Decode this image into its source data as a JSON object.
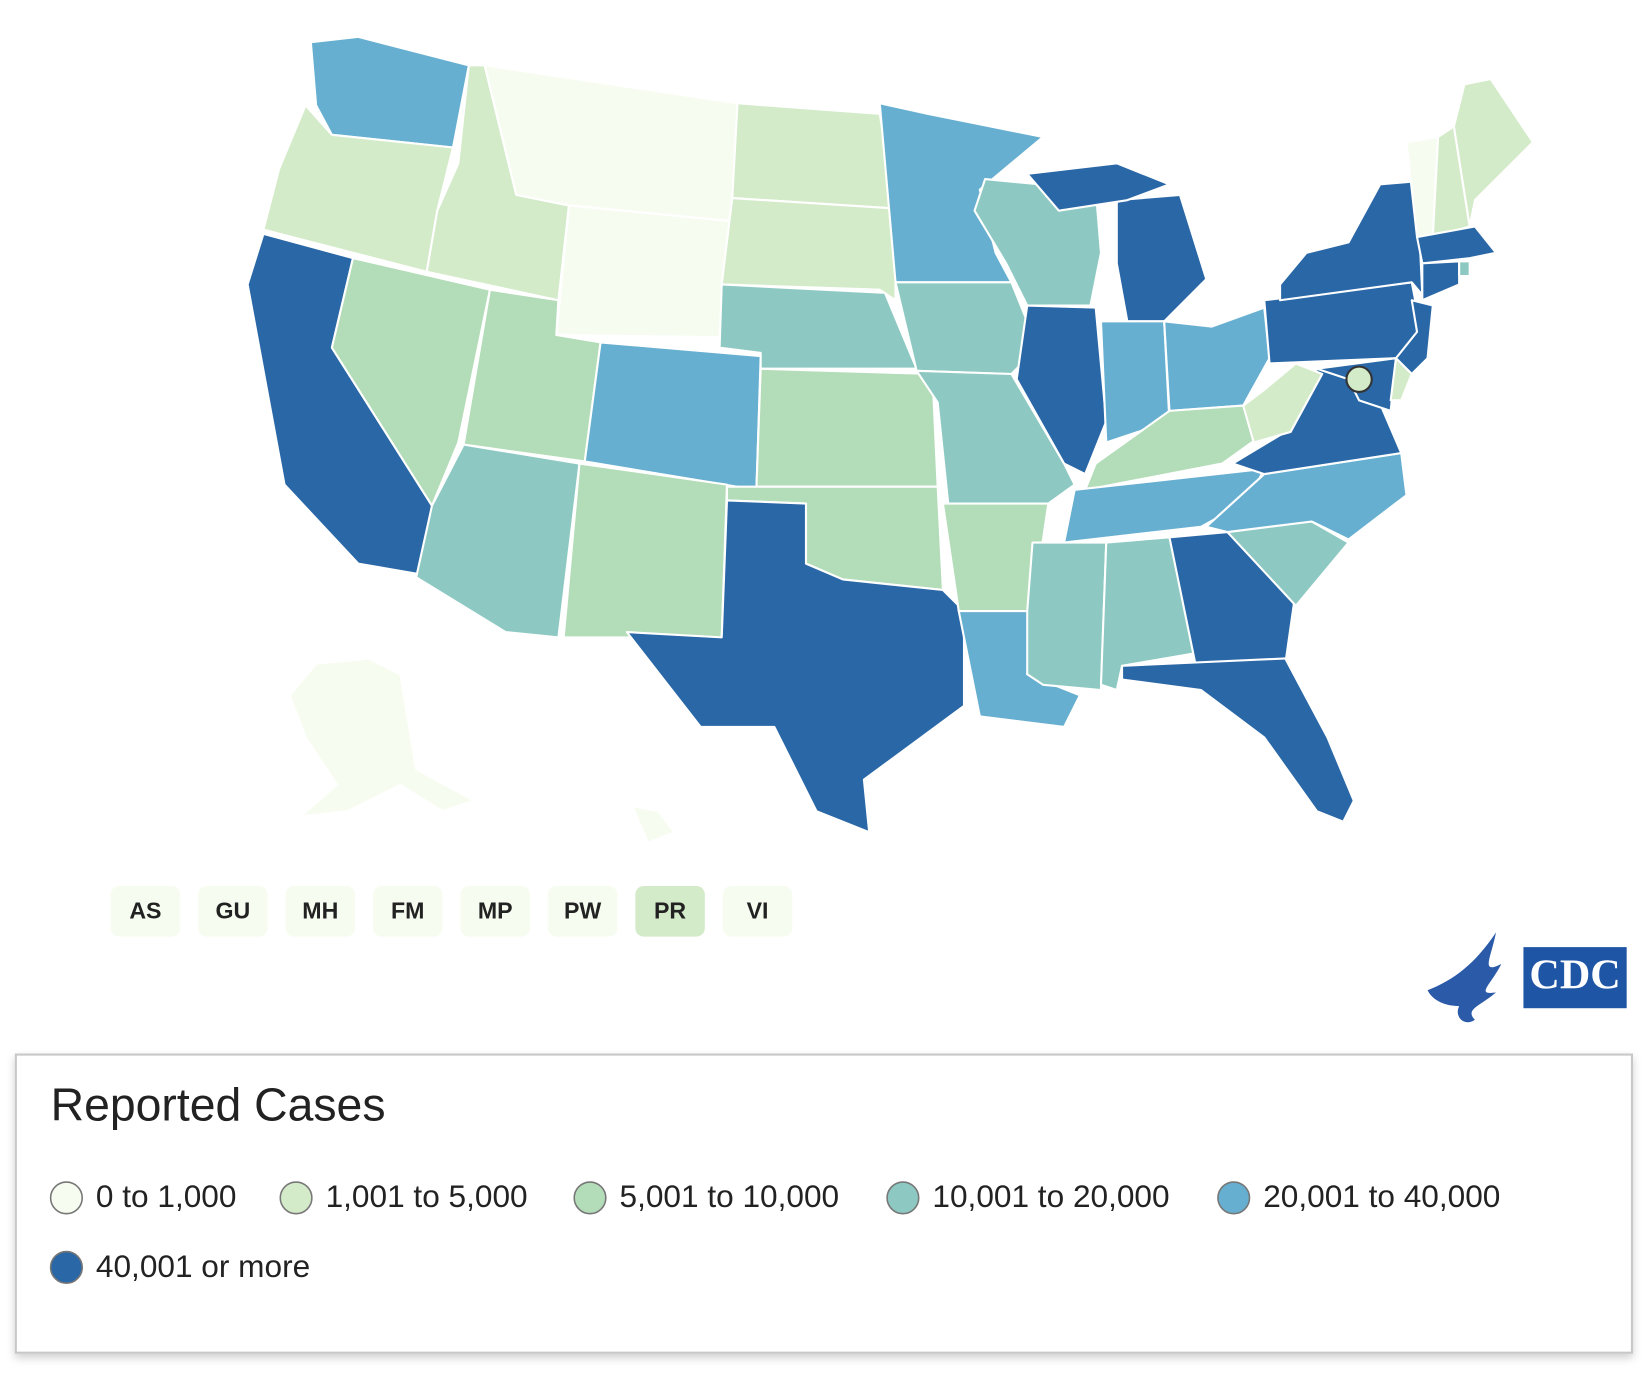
{
  "territories": [
    {
      "label": "AS",
      "color": "#f7fcf0"
    },
    {
      "label": "GU",
      "color": "#f7fcf0"
    },
    {
      "label": "MH",
      "color": "#f7fcf0"
    },
    {
      "label": "FM",
      "color": "#f7fcf0"
    },
    {
      "label": "MP",
      "color": "#f7fcf0"
    },
    {
      "label": "PW",
      "color": "#f7fcf0"
    },
    {
      "label": "PR",
      "color": "#d4ebc9"
    },
    {
      "label": "VI",
      "color": "#f7fcf0"
    }
  ],
  "logo_text": "CDC",
  "legend": {
    "title": "Reported Cases",
    "items": [
      {
        "label": "0 to 1,000",
        "color": "#f7fcf0"
      },
      {
        "label": "1,001 to 5,000",
        "color": "#d4ebc9"
      },
      {
        "label": "5,001 to 10,000",
        "color": "#b3dcb8"
      },
      {
        "label": "10,001 to 20,000",
        "color": "#8dc9c2"
      },
      {
        "label": "20,001 to 40,000",
        "color": "#67afd0"
      },
      {
        "label": "40,001 or more",
        "color": "#2a67a6"
      }
    ]
  }
}
